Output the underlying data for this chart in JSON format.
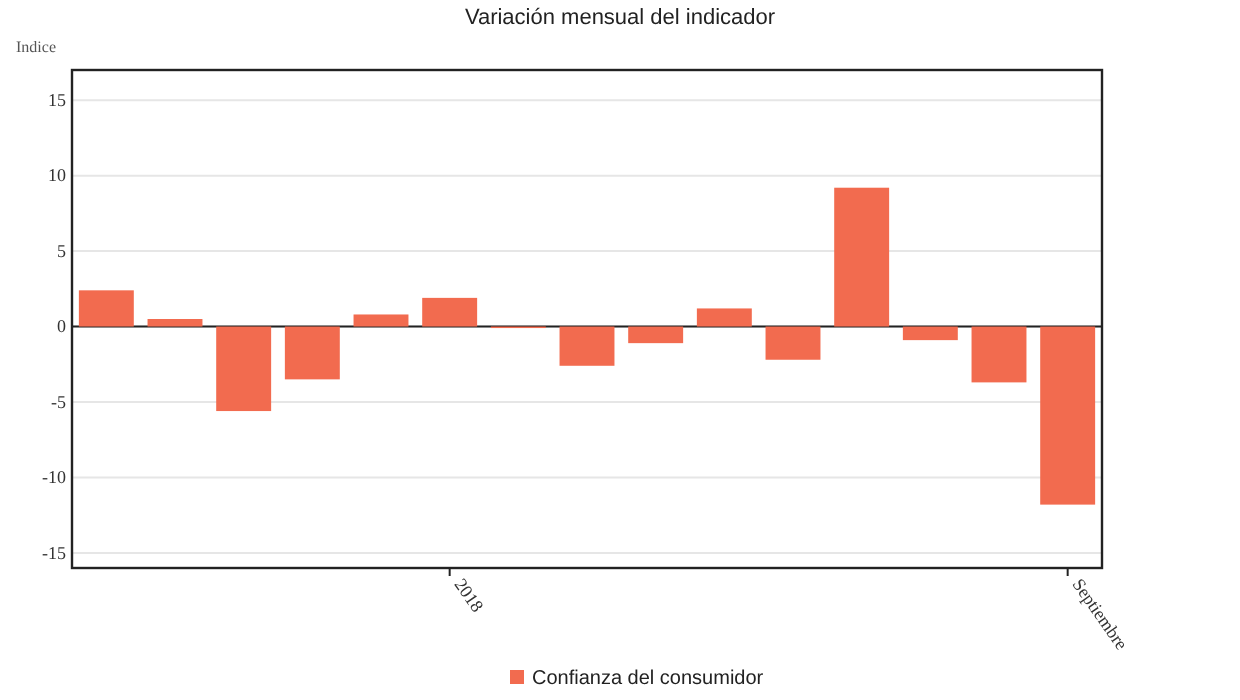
{
  "chart_data": {
    "type": "bar",
    "title": "Variación mensual del indicador",
    "ylabel": "Indice",
    "categories": [
      null,
      null,
      null,
      null,
      null,
      "2018",
      null,
      null,
      null,
      null,
      null,
      null,
      null,
      null,
      "Septiembre"
    ],
    "series": [
      {
        "name": "Confianza del consumidor",
        "color": "#f26b4f",
        "values": [
          2.4,
          0.5,
          -5.6,
          -3.5,
          0.8,
          1.9,
          -0.1,
          -2.6,
          -1.1,
          1.2,
          -2.2,
          9.2,
          -0.9,
          -3.7,
          -11.8
        ]
      }
    ],
    "ylim": [
      -16,
      17
    ],
    "yticks": [
      -15,
      -10,
      -5,
      0,
      5,
      10,
      15
    ],
    "grid": "y",
    "legend": "bottom"
  }
}
